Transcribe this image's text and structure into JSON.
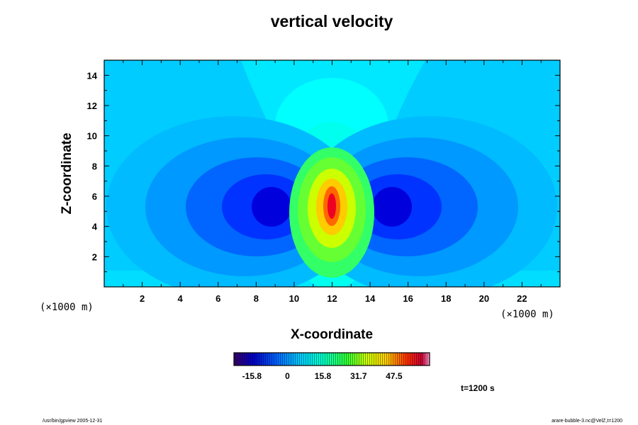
{
  "chart_data": {
    "type": "heatmap",
    "title": "vertical velocity",
    "xlabel": "X-coordinate",
    "ylabel": "Z-coordinate",
    "xlim": [
      0,
      24
    ],
    "ylim": [
      0,
      15
    ],
    "x_ticks": [
      2,
      4,
      6,
      8,
      10,
      12,
      14,
      16,
      18,
      20,
      22
    ],
    "y_ticks": [
      2,
      4,
      6,
      8,
      10,
      12,
      14
    ],
    "x_scale_note": "(×1000 m)",
    "y_scale_note": "(×1000 m)",
    "features": [
      {
        "name": "updraft-core",
        "x": 12,
        "z": 5.2,
        "sign": "positive",
        "approx_max": 55
      },
      {
        "name": "left-downdraft",
        "x": 9,
        "z": 5.5,
        "sign": "negative",
        "approx_min": -20
      },
      {
        "name": "right-downdraft",
        "x": 15,
        "z": 5.5,
        "sign": "negative",
        "approx_min": -20
      }
    ],
    "colorbar": {
      "vmin": -23.8,
      "vmax": 63.3,
      "ticks": [
        -15.8,
        0,
        15.8,
        31.7,
        47.5
      ],
      "tick_labels": [
        "-15.8",
        "0",
        "15.8",
        "31.7",
        "47.5"
      ]
    },
    "time_label": "t=1200 s"
  },
  "footer": {
    "left": "/usr/bin/gpview 2005-12-31",
    "right": "arare-bubble-3.nc@VelZ,t=1200"
  }
}
